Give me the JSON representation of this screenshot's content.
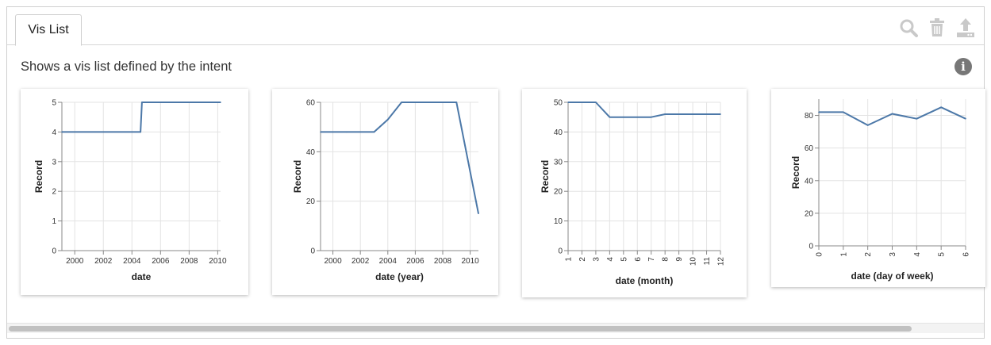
{
  "tab": {
    "label": "Vis List"
  },
  "toolbar": {
    "icons": [
      "search-icon",
      "trash-icon",
      "export-icon"
    ],
    "icon_color": "#c9c9c9"
  },
  "description": "Shows a vis list defined by the intent",
  "line_color": "#4c78a8",
  "chart_data": [
    {
      "type": "line",
      "xlabel": "date",
      "ylabel": "Record",
      "xlim": [
        1999.1,
        2010.2
      ],
      "ylim": [
        0,
        5
      ],
      "xticks": [
        2000,
        2002,
        2004,
        2006,
        2008,
        2010
      ],
      "xtick_labels": [
        "2000",
        "2002",
        "2004",
        "2006",
        "2008",
        "2010"
      ],
      "yticks": [
        0,
        1,
        2,
        3,
        4,
        5
      ],
      "grid": true,
      "x": [
        1999.1,
        2004.6,
        2004.7,
        2010.2
      ],
      "y": [
        4,
        4,
        5,
        5
      ]
    },
    {
      "type": "line",
      "xlabel": "date (year)",
      "ylabel": "Record",
      "xlim": [
        1999.1,
        2010.6
      ],
      "ylim": [
        0,
        60
      ],
      "xticks": [
        2000,
        2002,
        2004,
        2006,
        2008,
        2010
      ],
      "xtick_labels": [
        "2000",
        "2002",
        "2004",
        "2006",
        "2008",
        "2010"
      ],
      "yticks": [
        0,
        20,
        40,
        60
      ],
      "grid": true,
      "x": [
        1999.1,
        2000,
        2001,
        2002,
        2003,
        2004,
        2005,
        2006,
        2007,
        2008,
        2009,
        2010.6
      ],
      "y": [
        48,
        48,
        48,
        48,
        48,
        53,
        60,
        60,
        60,
        60,
        60,
        15
      ]
    },
    {
      "type": "line",
      "xlabel": "date (month)",
      "ylabel": "Record",
      "xlim": [
        1,
        12
      ],
      "ylim": [
        0,
        50
      ],
      "xticks": [
        1,
        2,
        3,
        4,
        5,
        6,
        7,
        8,
        9,
        10,
        11,
        12
      ],
      "xtick_labels": [
        "1",
        "2",
        "3",
        "4",
        "5",
        "6",
        "7",
        "8",
        "9",
        "10",
        "11",
        "12"
      ],
      "yticks": [
        0,
        10,
        20,
        30,
        40,
        50
      ],
      "grid": true,
      "x": [
        1,
        2,
        3,
        4,
        5,
        6,
        7,
        8,
        9,
        10,
        11,
        12
      ],
      "y": [
        50,
        50,
        50,
        45,
        45,
        45,
        45,
        46,
        46,
        46,
        46,
        46
      ]
    },
    {
      "type": "line",
      "xlabel": "date (day of week)",
      "ylabel": "Record",
      "xlim": [
        0,
        6
      ],
      "ylim": [
        0,
        90
      ],
      "xticks": [
        0,
        1,
        2,
        3,
        4,
        5,
        6
      ],
      "xtick_labels": [
        "0",
        "1",
        "2",
        "3",
        "4",
        "5",
        "6"
      ],
      "yticks": [
        0,
        20,
        40,
        60,
        80
      ],
      "grid": true,
      "x": [
        0,
        1,
        2,
        3,
        4,
        5,
        6
      ],
      "y": [
        82,
        82,
        74,
        81,
        78,
        85,
        78
      ]
    }
  ]
}
